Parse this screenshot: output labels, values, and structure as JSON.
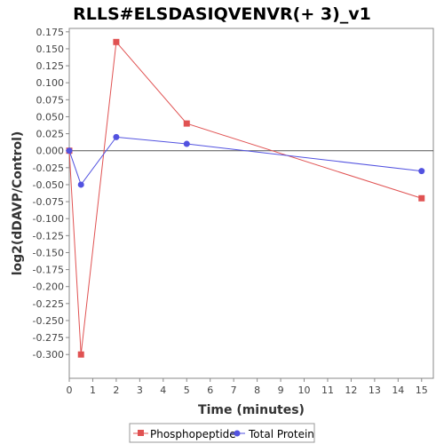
{
  "chart_data": {
    "type": "line",
    "title": "RLLS#ELSDASIQVENVR(+ 3)_v1",
    "xlabel": "Time (minutes)",
    "ylabel": "log2(dDAVP/Control)",
    "xlim": [
      0,
      15.5
    ],
    "ylim": [
      -0.335,
      0.18
    ],
    "x_ticks": [
      0,
      1,
      2,
      3,
      4,
      5,
      6,
      7,
      8,
      9,
      10,
      11,
      12,
      13,
      14,
      15
    ],
    "y_ticks": [
      0.175,
      0.15,
      0.125,
      0.1,
      0.075,
      0.05,
      0.025,
      0.0,
      -0.025,
      -0.05,
      -0.075,
      -0.1,
      -0.125,
      -0.15,
      -0.175,
      -0.2,
      -0.225,
      -0.25,
      -0.275,
      -0.3
    ],
    "y_tick_labels": [
      "0.175",
      "0.150",
      "0.125",
      "0.100",
      "0.075",
      "0.050",
      "0.025",
      "0.000",
      "-0.025",
      "-0.050",
      "-0.075",
      "-0.100",
      "-0.125",
      "-0.150",
      "-0.175",
      "-0.200",
      "-0.225",
      "-0.250",
      "-0.275",
      "-0.300"
    ],
    "zero_line": true,
    "grid": false,
    "legend_position": "bottom",
    "series": [
      {
        "name": "Phosphopeptide",
        "color": "#e05252",
        "marker": "square",
        "x": [
          0,
          0.5,
          2,
          5,
          15
        ],
        "y": [
          0.0,
          -0.3,
          0.16,
          0.04,
          -0.07
        ]
      },
      {
        "name": "Total Protein",
        "color": "#5252e0",
        "marker": "circle",
        "x": [
          0,
          0.5,
          2,
          5,
          15
        ],
        "y": [
          0.0,
          -0.05,
          0.02,
          0.01,
          -0.03
        ]
      }
    ]
  }
}
